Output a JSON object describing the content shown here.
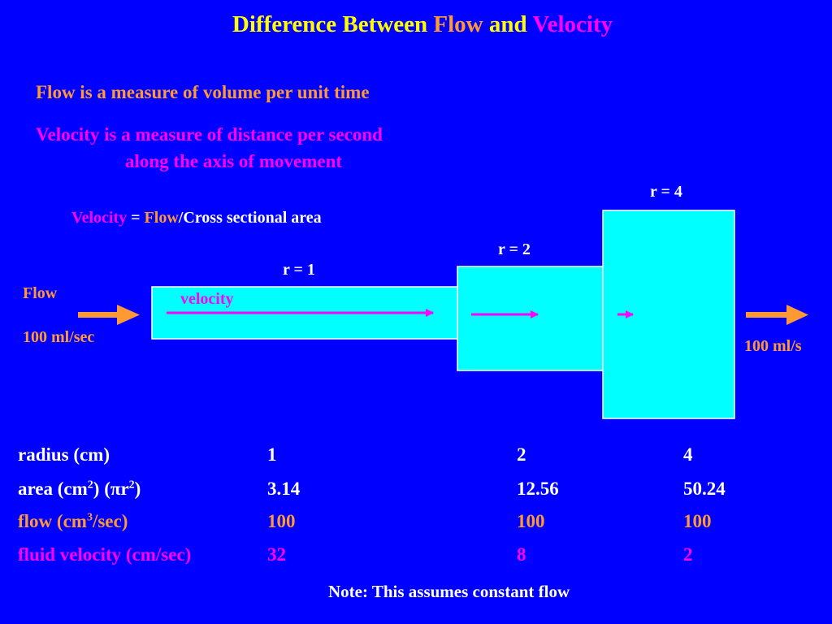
{
  "title": {
    "part1": "Difference Between ",
    "flow": "Flow",
    "and": " and ",
    "velocity": "Velocity"
  },
  "definitions": {
    "flow_def": "Flow is a measure of volume per unit time",
    "velocity_def_line1": "Velocity is a measure of distance per second",
    "velocity_def_line2": "along the axis of movement"
  },
  "formula": {
    "velocity": "Velocity",
    "eq": " = ",
    "flow": "Flow",
    "rest": "/Cross sectional area"
  },
  "diagram": {
    "inflow_label": "Flow",
    "inflow_value": "100 ml/sec",
    "outflow_value": "100 ml/s",
    "velocity_label": "velocity",
    "r1_label": "r = 1",
    "r2_label": "r = 2",
    "r4_label": "r = 4",
    "colors": {
      "tube": "#00ffff",
      "arrow_flow": "#ff9933",
      "arrow_velocity": "#ff00ff"
    }
  },
  "table": {
    "rows": [
      {
        "label": "radius (cm)",
        "v1": "1",
        "v2": "2",
        "v3": "4"
      },
      {
        "label_pre": "area (cm",
        "label_sup1": "2",
        "label_mid": ") (πr",
        "label_sup2": "2",
        "label_post": ")",
        "v1": "3.14",
        "v2": "12.56",
        "v3": "50.24"
      },
      {
        "label_pre": "flow (cm",
        "label_sup1": "3",
        "label_post": "/sec)",
        "v1": "100",
        "v2": "100",
        "v3": "100"
      },
      {
        "label": "fluid velocity (cm/sec)",
        "v1": "32",
        "v2": "8",
        "v3": "2"
      }
    ]
  },
  "note": "Note: This assumes constant flow"
}
